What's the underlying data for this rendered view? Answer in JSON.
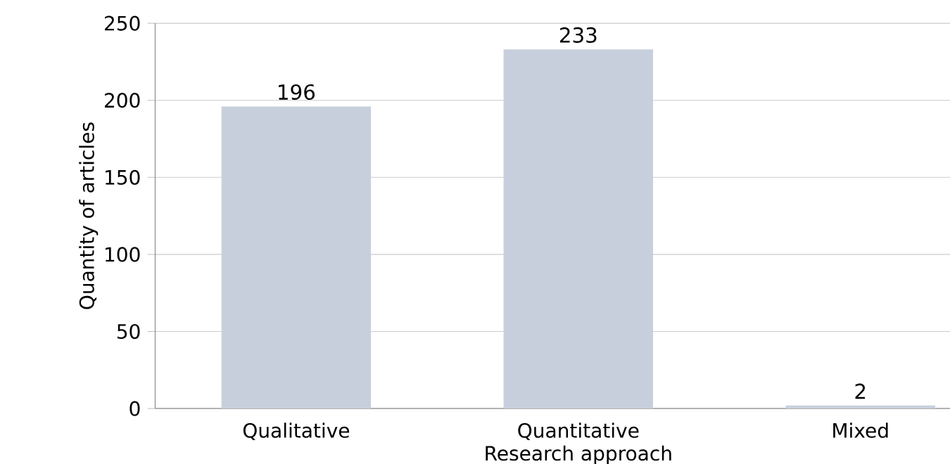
{
  "chart_data": {
    "type": "bar",
    "xlabel": "Research approach",
    "ylabel": "Quantity of articles",
    "categories": [
      "Qualitative",
      "Quantitative",
      "Mixed"
    ],
    "values": [
      196,
      233,
      2
    ],
    "color": "#c8cfdc",
    "ylim": [
      0,
      250
    ],
    "yticks": [
      0,
      50,
      100,
      150,
      200,
      250
    ],
    "grid": "y",
    "data_labels": true
  }
}
